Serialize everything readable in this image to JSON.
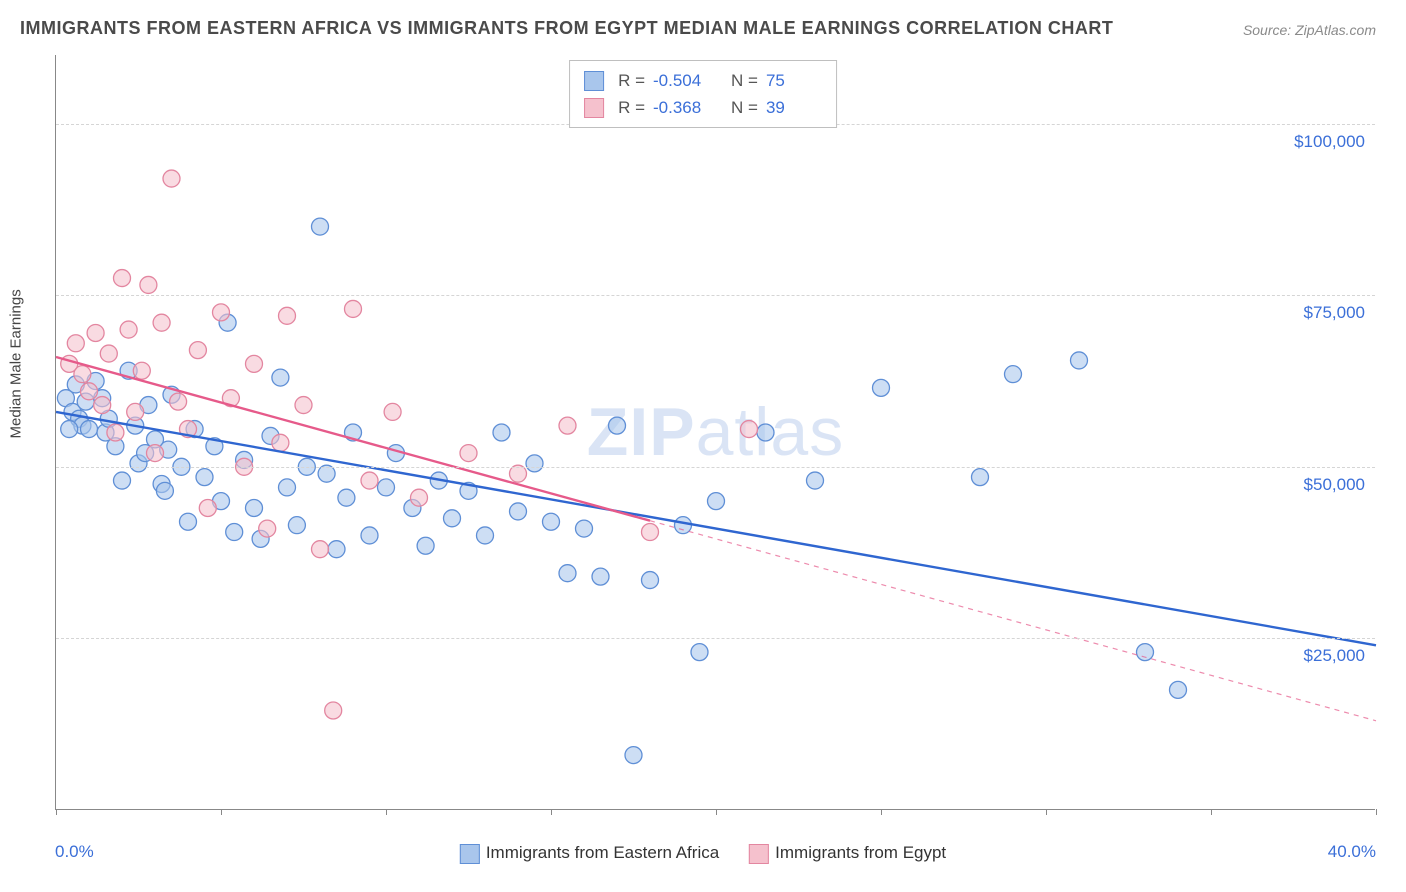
{
  "title": "IMMIGRANTS FROM EASTERN AFRICA VS IMMIGRANTS FROM EGYPT MEDIAN MALE EARNINGS CORRELATION CHART",
  "source": "Source: ZipAtlas.com",
  "watermark_bold": "ZIP",
  "watermark_light": "atlas",
  "y_axis_label": "Median Male Earnings",
  "x_min_label": "0.0%",
  "x_max_label": "40.0%",
  "chart": {
    "type": "scatter",
    "xlim": [
      0,
      40
    ],
    "ylim": [
      0,
      110000
    ],
    "y_ticks": [
      25000,
      50000,
      75000,
      100000
    ],
    "y_tick_labels": [
      "$25,000",
      "$50,000",
      "$75,000",
      "$100,000"
    ],
    "x_ticks": [
      0,
      5,
      10,
      15,
      20,
      25,
      30,
      35,
      40
    ],
    "grid_color": "#d5d5d5",
    "background_color": "#ffffff",
    "marker_radius": 8.5,
    "marker_stroke_width": 1.3,
    "line_width": 2.4,
    "series": [
      {
        "name": "Immigrants from Eastern Africa",
        "fill": "#a9c6ec",
        "fill_opacity": 0.58,
        "stroke": "#5f8fd6",
        "line_color": "#2f66d0",
        "R": "-0.504",
        "N": "75",
        "trend": {
          "x1": 0,
          "y1": 58000,
          "x2": 40,
          "y2": 24000,
          "solid_until_x": 40
        },
        "points": [
          [
            0.3,
            60000
          ],
          [
            0.5,
            58000
          ],
          [
            0.6,
            62000
          ],
          [
            0.7,
            57000
          ],
          [
            0.8,
            56000
          ],
          [
            0.9,
            59500
          ],
          [
            1.0,
            55500
          ],
          [
            1.2,
            62500
          ],
          [
            1.4,
            60000
          ],
          [
            1.5,
            55000
          ],
          [
            1.8,
            53000
          ],
          [
            2.0,
            48000
          ],
          [
            2.2,
            64000
          ],
          [
            2.4,
            56000
          ],
          [
            2.5,
            50500
          ],
          [
            2.7,
            52000
          ],
          [
            2.8,
            59000
          ],
          [
            3.0,
            54000
          ],
          [
            3.2,
            47500
          ],
          [
            3.4,
            52500
          ],
          [
            3.5,
            60500
          ],
          [
            3.8,
            50000
          ],
          [
            4.0,
            42000
          ],
          [
            4.2,
            55500
          ],
          [
            4.5,
            48500
          ],
          [
            4.8,
            53000
          ],
          [
            5.0,
            45000
          ],
          [
            5.2,
            71000
          ],
          [
            5.4,
            40500
          ],
          [
            5.7,
            51000
          ],
          [
            6.0,
            44000
          ],
          [
            6.2,
            39500
          ],
          [
            6.5,
            54500
          ],
          [
            6.8,
            63000
          ],
          [
            7.0,
            47000
          ],
          [
            7.3,
            41500
          ],
          [
            7.6,
            50000
          ],
          [
            8.0,
            85000
          ],
          [
            8.2,
            49000
          ],
          [
            8.5,
            38000
          ],
          [
            8.8,
            45500
          ],
          [
            9.0,
            55000
          ],
          [
            9.5,
            40000
          ],
          [
            10.0,
            47000
          ],
          [
            10.3,
            52000
          ],
          [
            10.8,
            44000
          ],
          [
            11.2,
            38500
          ],
          [
            11.6,
            48000
          ],
          [
            12.0,
            42500
          ],
          [
            12.5,
            46500
          ],
          [
            13.0,
            40000
          ],
          [
            13.5,
            55000
          ],
          [
            14.0,
            43500
          ],
          [
            14.5,
            50500
          ],
          [
            15.0,
            42000
          ],
          [
            15.5,
            34500
          ],
          [
            16.0,
            41000
          ],
          [
            16.5,
            34000
          ],
          [
            17.0,
            56000
          ],
          [
            17.5,
            8000
          ],
          [
            18.0,
            33500
          ],
          [
            19.0,
            41500
          ],
          [
            19.5,
            23000
          ],
          [
            20.0,
            45000
          ],
          [
            21.5,
            55000
          ],
          [
            23.0,
            48000
          ],
          [
            25.0,
            61500
          ],
          [
            28.0,
            48500
          ],
          [
            29.0,
            63500
          ],
          [
            31.0,
            65500
          ],
          [
            33.0,
            23000
          ],
          [
            34.0,
            17500
          ],
          [
            0.4,
            55500
          ],
          [
            1.6,
            57000
          ],
          [
            3.3,
            46500
          ]
        ]
      },
      {
        "name": "Immigrants from Egypt",
        "fill": "#f5c1cd",
        "fill_opacity": 0.58,
        "stroke": "#e386a0",
        "line_color": "#e65a8a",
        "R": "-0.368",
        "N": "39",
        "trend": {
          "x1": 0,
          "y1": 66000,
          "x2": 40,
          "y2": 13000,
          "solid_until_x": 18
        },
        "points": [
          [
            0.4,
            65000
          ],
          [
            0.6,
            68000
          ],
          [
            0.8,
            63500
          ],
          [
            1.0,
            61000
          ],
          [
            1.2,
            69500
          ],
          [
            1.4,
            59000
          ],
          [
            1.6,
            66500
          ],
          [
            1.8,
            55000
          ],
          [
            2.0,
            77500
          ],
          [
            2.2,
            70000
          ],
          [
            2.4,
            58000
          ],
          [
            2.6,
            64000
          ],
          [
            2.8,
            76500
          ],
          [
            3.0,
            52000
          ],
          [
            3.2,
            71000
          ],
          [
            3.5,
            92000
          ],
          [
            3.7,
            59500
          ],
          [
            4.0,
            55500
          ],
          [
            4.3,
            67000
          ],
          [
            4.6,
            44000
          ],
          [
            5.0,
            72500
          ],
          [
            5.3,
            60000
          ],
          [
            5.7,
            50000
          ],
          [
            6.0,
            65000
          ],
          [
            6.4,
            41000
          ],
          [
            6.8,
            53500
          ],
          [
            7.0,
            72000
          ],
          [
            7.5,
            59000
          ],
          [
            8.0,
            38000
          ],
          [
            8.4,
            14500
          ],
          [
            9.0,
            73000
          ],
          [
            9.5,
            48000
          ],
          [
            10.2,
            58000
          ],
          [
            11.0,
            45500
          ],
          [
            12.5,
            52000
          ],
          [
            14.0,
            49000
          ],
          [
            15.5,
            56000
          ],
          [
            18.0,
            40500
          ],
          [
            21.0,
            55500
          ]
        ]
      }
    ]
  },
  "legend": {
    "r_label": "R =",
    "n_label": "N ="
  }
}
